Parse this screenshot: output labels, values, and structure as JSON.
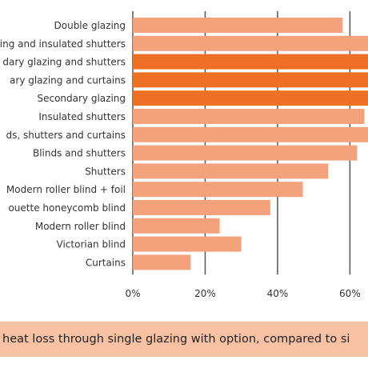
{
  "chart_data": {
    "type": "bar",
    "orientation": "horizontal",
    "categories": [
      "Double glazing",
      "ing and insulated shutters",
      "dary glazing and shutters",
      "ary glazing and curtains",
      "Secondary glazing",
      "Insulated shutters",
      "ds, shutters and curtains",
      "Blinds and shutters",
      "Shutters",
      "Modern roller blind + foil",
      "ouette honeycomb blind",
      "Modern roller blind",
      "Victorian blind",
      "Curtains"
    ],
    "values": [
      58,
      65,
      66,
      67,
      66,
      64,
      65,
      62,
      54,
      47,
      38,
      24,
      30,
      16
    ],
    "highlight_colors": [
      "#f4a27c",
      "#f4a27c",
      "#ee7024",
      "#ee7024",
      "#ee7024",
      "#f4a27c",
      "#f4a27c",
      "#f4a27c",
      "#f4a27c",
      "#f4a27c",
      "#f4a27c",
      "#f4a27c",
      "#f4a27c",
      "#f4a27c"
    ],
    "xlim": [
      0,
      65
    ],
    "xticks": [
      0,
      20,
      40,
      60
    ],
    "xtick_labels": [
      "0%",
      "20%",
      "40%",
      "60%"
    ],
    "grid": "vertical lines",
    "caption": "heat loss through single glazing with option, compared to si"
  },
  "colors": {
    "bar": "#f4a27c",
    "bar_highlight": "#ee7024",
    "grid": "#555555",
    "caption_band": "#f7c1a3"
  }
}
